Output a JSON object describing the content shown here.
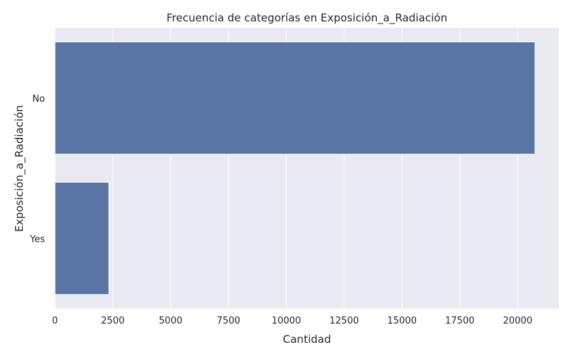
{
  "chart_data": {
    "type": "bar",
    "orientation": "horizontal",
    "title": "Frecuencia de categorías en Exposición_a_Radiación",
    "xlabel": "Cantidad",
    "ylabel": "Exposición_a_Radiación",
    "categories": [
      "No",
      "Yes"
    ],
    "values": [
      20750,
      2330
    ],
    "xlim": [
      0,
      21780
    ],
    "xticks": [
      0,
      2500,
      5000,
      7500,
      10000,
      12500,
      15000,
      17500,
      20000
    ],
    "grid": true,
    "legend": "none",
    "colors": {
      "bar": "#5975a4",
      "background": "#eaeaf2",
      "grid": "#ffffff",
      "text": "#262626"
    }
  }
}
